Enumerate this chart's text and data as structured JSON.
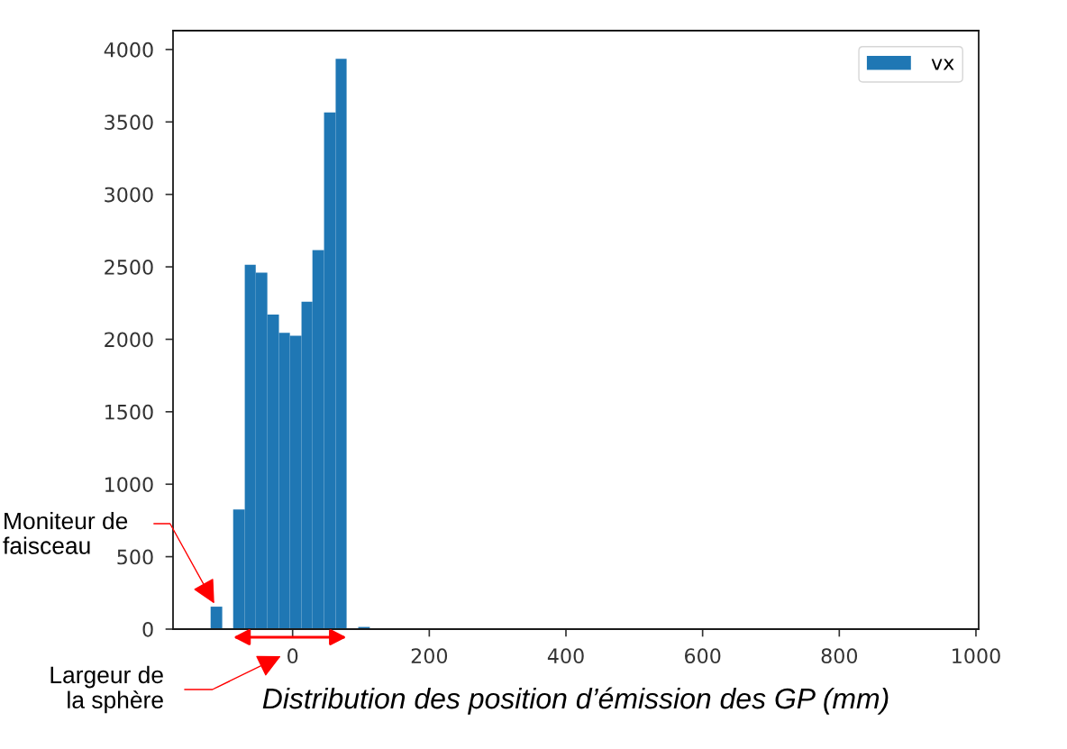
{
  "chart_data": {
    "type": "histogram",
    "xlabel": "Distribution des position d’émission des GP (mm)",
    "bins": [
      -120,
      -103,
      -87,
      -70,
      -54,
      -37,
      -20,
      -4,
      13,
      29,
      46,
      63,
      79,
      96,
      113
    ],
    "series": [
      {
        "name": "vx",
        "color": "#1f77b4",
        "values": [
          155,
          0,
          825,
          2515,
          2460,
          2170,
          2045,
          2025,
          2260,
          2615,
          3565,
          3935,
          0,
          15
        ]
      }
    ],
    "xlim": [
      -175,
      1004
    ],
    "xticks": [
      0,
      200,
      400,
      600,
      800,
      1000
    ],
    "ylim": [
      0,
      4130
    ],
    "yticks": [
      0,
      500,
      1000,
      1500,
      2000,
      2500,
      3000,
      3500,
      4000
    ],
    "legend": "top right",
    "annotations": [
      {
        "text": "Moniteur de\nfaisceau",
        "x": -112,
        "y": 155
      },
      "Largeur de\nla sphère"
    ]
  }
}
